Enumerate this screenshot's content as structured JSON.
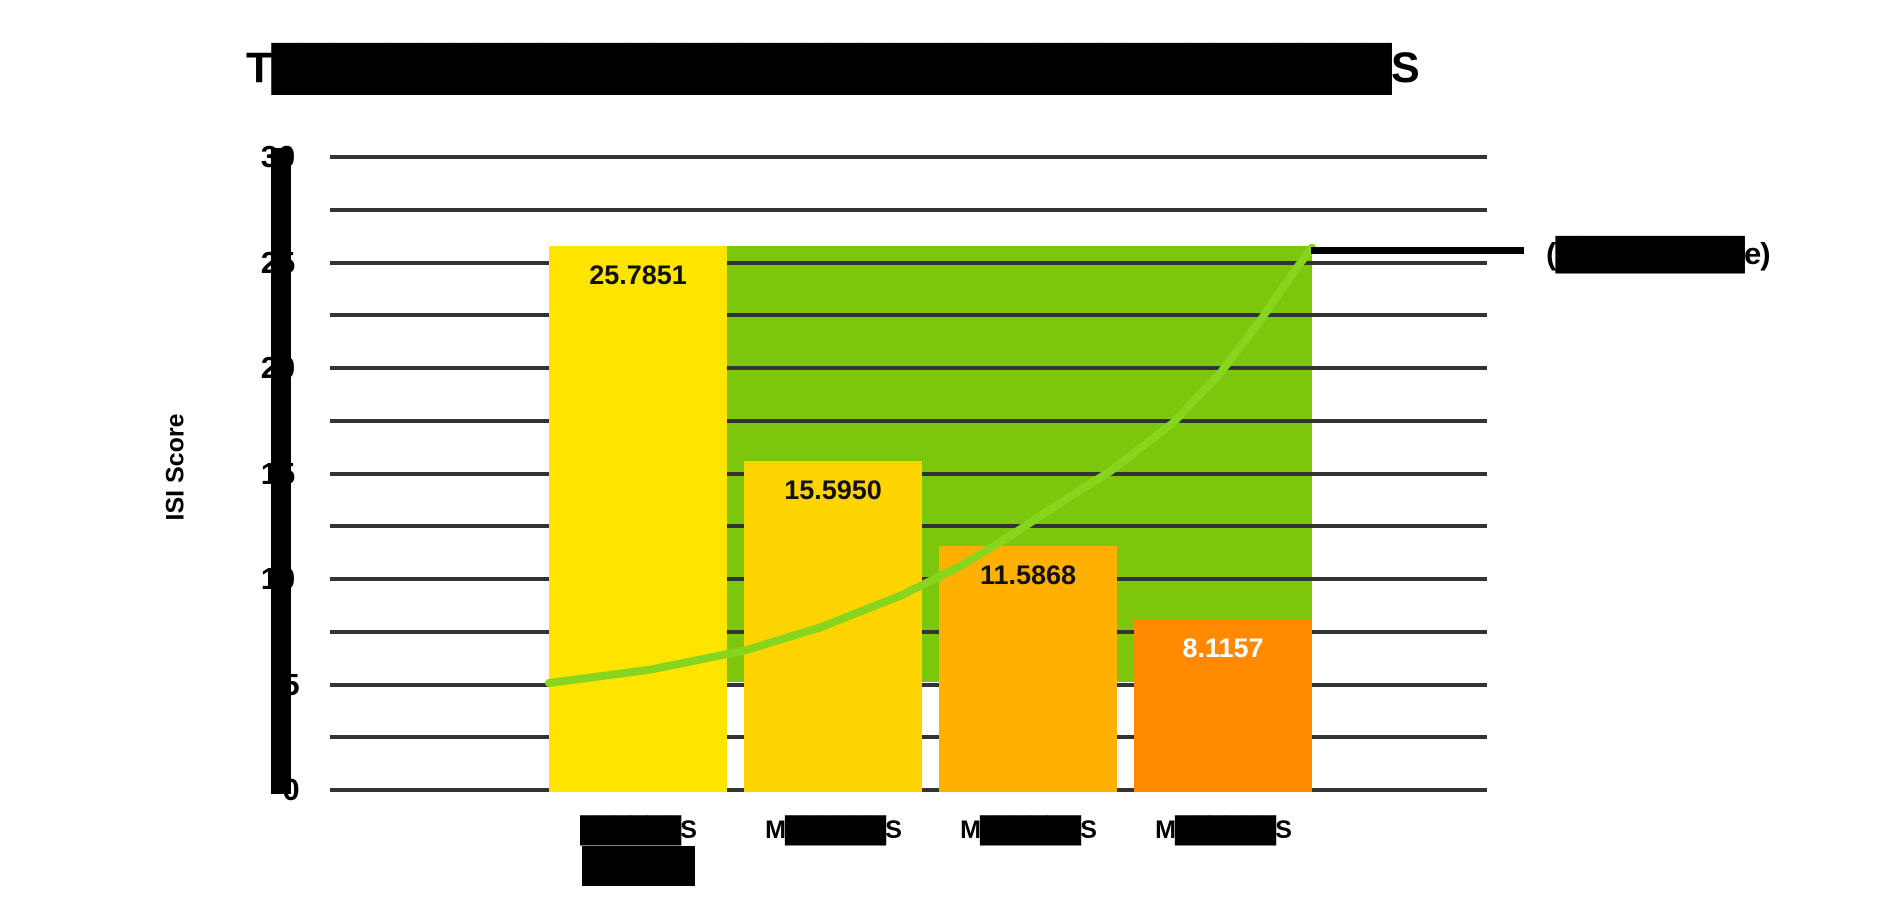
{
  "chart_data": {
    "type": "bar",
    "title": "T██████████████████████████████████████S",
    "ylabel": "ISI Score",
    "ylim": [
      0,
      30
    ],
    "ytick_interval": 5,
    "gridline_interval": 2.5,
    "grid": true,
    "yticks": [
      "30",
      "25",
      "20",
      "15",
      "10",
      "5",
      "0"
    ],
    "note": "Several text items in the source image are illegible solid black blocks; block glyphs reproduce their appearance. Visible edge letters kept.",
    "categories": [
      {
        "label_lines": [
          "██████S",
          "█████"
        ],
        "value": 25.7851,
        "value_label": "25.7851",
        "bar_color": "#FEE500",
        "value_label_color": "#111111"
      },
      {
        "label_lines": [
          "M██████S"
        ],
        "value": 15.595,
        "value_label": "15.5950",
        "bar_color": "#FFD400",
        "value_label_color": "#111111"
      },
      {
        "label_lines": [
          "M██████S"
        ],
        "value": 11.5868,
        "value_label": "11.5868",
        "bar_color": "#FFB000",
        "value_label_color": "#111111"
      },
      {
        "label_lines": [
          "M██████S"
        ],
        "value": 8.1157,
        "value_label": "8.1157",
        "bar_color": "#FF8A00",
        "value_label_color": "#FFFFFF"
      }
    ],
    "band": {
      "color": "#7CC70C",
      "value_from": 5.1,
      "value_to": 25.7851
    },
    "trend_line": {
      "color": "#87D51E",
      "stroke_width": 8,
      "points_x_value": [
        [
          549,
          5.07
        ],
        [
          650,
          5.7
        ],
        [
          744,
          6.6
        ],
        [
          820,
          7.7
        ],
        [
          900,
          9.2
        ],
        [
          960,
          10.6
        ],
        [
          1012,
          12.1
        ],
        [
          1060,
          13.6
        ],
        [
          1110,
          15.1
        ],
        [
          1173,
          17.4
        ],
        [
          1221,
          19.8
        ],
        [
          1261,
          22.3
        ],
        [
          1296,
          24.7
        ],
        [
          1312,
          25.7
        ]
      ]
    },
    "annotation": {
      "text": "(█████████e)",
      "leader_line_color": "#000000",
      "position": "right-of-band-top"
    },
    "axis_color": "#000000",
    "gridline_color": "#333333",
    "background_color": "#FFFFFF"
  }
}
